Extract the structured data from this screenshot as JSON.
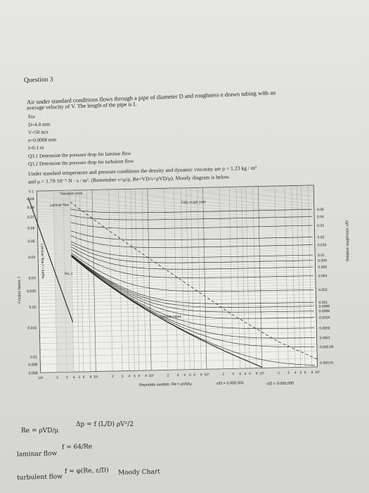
{
  "question": {
    "title": "Question 3",
    "intro_line1": "Air under standard conditions flows through a pipe of diameter D and roughness e drawn tubing with an",
    "intro_line2": "average velocity of V. The length of the pipe is L",
    "for_label": "For",
    "params": [
      "D=4.0 mm",
      "V=50 m/s",
      "e=0.0008 mm",
      "l=0.1 m"
    ],
    "q1": "Q3.1 Determine the pressure drop for laminar flow",
    "q2": "Q3.2 Determine the pressure drop for turbulent flow",
    "cond_line1": "Under standard temperature and pressure conditions the density and dynamic viscosity are ρ = 1.23 kg / m³",
    "cond_line2": "and μ = 1.79·10⁻⁵ N · s / m². (Remember ν=μ/ρ, Re=VD/ν=ρVD/μ). Moody diagram is below."
  },
  "chart_data": {
    "type": "line",
    "title": "",
    "xlabel": "Reynolds number, Re = ρVD/μ",
    "ylabel": "Friction factor, f",
    "y2label": "Relative roughness, ε/D",
    "xscale": "log",
    "yscale": "log",
    "xlim": [
      1000,
      100000000
    ],
    "ylim": [
      0.008,
      0.1
    ],
    "x_tick_labels": [
      "10³",
      "2",
      "3",
      "4",
      "5",
      "6",
      "8",
      "10⁴",
      "2",
      "3",
      "4",
      "5",
      "6",
      "8",
      "10⁵",
      "2",
      "3",
      "4",
      "5",
      "6",
      "8",
      "10⁶",
      "2",
      "3",
      "4",
      "5",
      "6",
      "8",
      "10⁷",
      "2",
      "3",
      "4",
      "5",
      "6",
      "8",
      "10⁸"
    ],
    "y_tick_labels": [
      "0.1",
      "0.09",
      "0.08",
      "0.07",
      "0.06",
      "0.05",
      "0.04",
      "0.03",
      "0.025",
      "0.02",
      "0.015",
      "0.01",
      "0.009",
      "0.008"
    ],
    "y_ticks": [
      0.1,
      0.09,
      0.08,
      0.07,
      0.06,
      0.05,
      0.04,
      0.03,
      0.025,
      0.02,
      0.015,
      0.01,
      0.009,
      0.008
    ],
    "roughness_labels": [
      "0.05",
      "0.04",
      "0.03",
      "0.02",
      "0.015",
      "0.01",
      "0.008",
      "0.006",
      "0.004",
      "0.002",
      "0.001",
      "0.0008",
      "0.0006",
      "0.0004",
      "0.0002",
      "0.0001",
      "0.000,05",
      "0.000,01",
      "0.000,005",
      "0.000,001"
    ],
    "roughness_values": [
      0.05,
      0.04,
      0.03,
      0.02,
      0.015,
      0.01,
      0.008,
      0.006,
      0.004,
      0.002,
      0.001,
      0.0008,
      0.0006,
      0.0004,
      0.0002,
      0.0001,
      5e-05,
      1e-05
    ],
    "annotations": {
      "laminar": "Laminar flow",
      "transition": "Transition zone",
      "fully_rough": "Fully rough zone",
      "smooth": "Smooth pipes",
      "laminar_eq": "Laminar flow f = 64/Re",
      "rec": "Re_c",
      "eps_small_1": "ε/D = 0.000,001",
      "eps_small_2": "ε/D = 0.000,005"
    },
    "grid": true
  },
  "formulas": {
    "re": "Re = ρVD/μ",
    "dp": "Δp = f (L/D) ρV²/2",
    "laminar_label": "laminar flow",
    "laminar_eq": "f = 64/Re",
    "turbulent_label": "turbulent flow",
    "turbulent_eq": "f = φ(Re, ε/D)",
    "moody": "Moody Chart"
  }
}
